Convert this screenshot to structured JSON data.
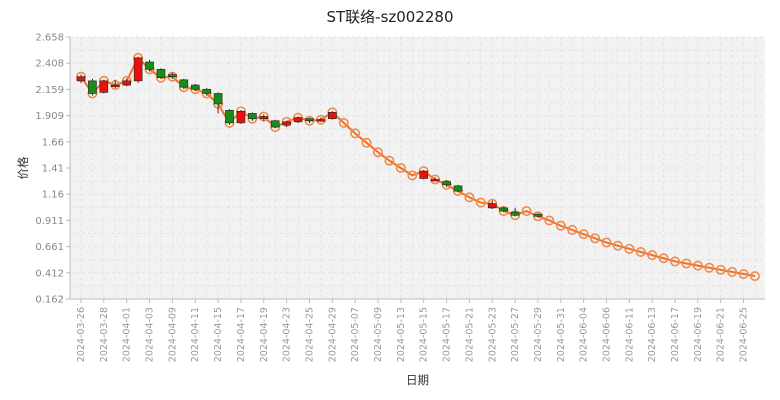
{
  "chart_data": {
    "type": "candlestick",
    "title": "ST联络-sz002280",
    "xlabel": "日期",
    "ylabel": "价格",
    "ylim": [
      0.162,
      2.658
    ],
    "y_ticks": [
      "0.162",
      "0.412",
      "0.661",
      "0.911",
      "1.16",
      "1.41",
      "1.66",
      "1.909",
      "2.159",
      "2.408",
      "2.658"
    ],
    "x_tick_labels": [
      "2024-03-26",
      "2024-03-28",
      "2024-04-01",
      "2024-04-03",
      "2024-04-09",
      "2024-04-11",
      "2024-04-15",
      "2024-04-17",
      "2024-04-19",
      "2024-04-23",
      "2024-04-25",
      "2024-04-29",
      "2024-05-07",
      "2024-05-09",
      "2024-05-13",
      "2024-05-15",
      "2024-05-17",
      "2024-05-21",
      "2024-05-23",
      "2024-05-27",
      "2024-05-29",
      "2024-05-31",
      "2024-06-04",
      "2024-06-06",
      "2024-06-11",
      "2024-06-13",
      "2024-06-17",
      "2024-06-19",
      "2024-06-21",
      "2024-06-25"
    ],
    "grid": true,
    "colors": {
      "up": "#e8110e",
      "down": "#1a8c1a",
      "close_line": "#ef7029",
      "marker": "#f08a4b",
      "grid": "#e3e3e3",
      "plot_bg": "#f2f2f2"
    },
    "candles": [
      {
        "o": 2.24,
        "c": 2.28,
        "h": 2.3,
        "l": 2.22
      },
      {
        "o": 2.24,
        "c": 2.12,
        "h": 2.26,
        "l": 2.1
      },
      {
        "o": 2.13,
        "c": 2.24,
        "h": 2.25,
        "l": 2.12
      },
      {
        "o": 2.2,
        "c": 2.2,
        "h": 2.25,
        "l": 2.17
      },
      {
        "o": 2.2,
        "c": 2.24,
        "h": 2.26,
        "l": 2.19
      },
      {
        "o": 2.24,
        "c": 2.46,
        "h": 2.46,
        "l": 2.22
      },
      {
        "o": 2.42,
        "c": 2.35,
        "h": 2.44,
        "l": 2.33
      },
      {
        "o": 2.35,
        "c": 2.27,
        "h": 2.36,
        "l": 2.26
      },
      {
        "o": 2.3,
        "c": 2.28,
        "h": 2.32,
        "l": 2.26
      },
      {
        "o": 2.25,
        "c": 2.18,
        "h": 2.26,
        "l": 2.16
      },
      {
        "o": 2.2,
        "c": 2.16,
        "h": 2.21,
        "l": 2.14
      },
      {
        "o": 2.16,
        "c": 2.12,
        "h": 2.17,
        "l": 2.1
      },
      {
        "o": 2.12,
        "c": 2.02,
        "h": 2.13,
        "l": 1.93
      },
      {
        "o": 1.96,
        "c": 1.84,
        "h": 1.97,
        "l": 1.82
      },
      {
        "o": 1.84,
        "c": 1.95,
        "h": 1.96,
        "l": 1.83
      },
      {
        "o": 1.93,
        "c": 1.88,
        "h": 1.94,
        "l": 1.86
      },
      {
        "o": 1.88,
        "c": 1.9,
        "h": 1.92,
        "l": 1.86
      },
      {
        "o": 1.86,
        "c": 1.8,
        "h": 1.87,
        "l": 1.79
      },
      {
        "o": 1.82,
        "c": 1.85,
        "h": 1.86,
        "l": 1.8
      },
      {
        "o": 1.85,
        "c": 1.89,
        "h": 1.9,
        "l": 1.84
      },
      {
        "o": 1.88,
        "c": 1.86,
        "h": 1.89,
        "l": 1.84
      },
      {
        "o": 1.87,
        "c": 1.87,
        "h": 1.89,
        "l": 1.85
      },
      {
        "o": 1.88,
        "c": 1.94,
        "h": 1.95,
        "l": 1.87
      },
      {
        "o": 1.84,
        "c": 1.84,
        "h": 1.84,
        "l": 1.84
      },
      {
        "o": 1.74,
        "c": 1.74,
        "h": 1.74,
        "l": 1.74
      },
      {
        "o": 1.65,
        "c": 1.65,
        "h": 1.65,
        "l": 1.65
      },
      {
        "o": 1.56,
        "c": 1.56,
        "h": 1.56,
        "l": 1.56
      },
      {
        "o": 1.48,
        "c": 1.48,
        "h": 1.48,
        "l": 1.48
      },
      {
        "o": 1.41,
        "c": 1.41,
        "h": 1.41,
        "l": 1.41
      },
      {
        "o": 1.34,
        "c": 1.34,
        "h": 1.34,
        "l": 1.34
      },
      {
        "o": 1.31,
        "c": 1.38,
        "h": 1.39,
        "l": 1.3
      },
      {
        "o": 1.3,
        "c": 1.3,
        "h": 1.32,
        "l": 1.29
      },
      {
        "o": 1.28,
        "c": 1.25,
        "h": 1.29,
        "l": 1.23
      },
      {
        "o": 1.24,
        "c": 1.19,
        "h": 1.25,
        "l": 1.18
      },
      {
        "o": 1.13,
        "c": 1.13,
        "h": 1.13,
        "l": 1.13
      },
      {
        "o": 1.08,
        "c": 1.08,
        "h": 1.08,
        "l": 1.08
      },
      {
        "o": 1.03,
        "c": 1.07,
        "h": 1.1,
        "l": 1.02
      },
      {
        "o": 1.03,
        "c": 1.0,
        "h": 1.04,
        "l": 0.99
      },
      {
        "o": 0.99,
        "c": 0.96,
        "h": 1.03,
        "l": 0.95
      },
      {
        "o": 1.0,
        "c": 1.0,
        "h": 1.0,
        "l": 1.0
      },
      {
        "o": 0.97,
        "c": 0.95,
        "h": 0.98,
        "l": 0.94
      },
      {
        "o": 0.91,
        "c": 0.91,
        "h": 0.91,
        "l": 0.91
      },
      {
        "o": 0.86,
        "c": 0.86,
        "h": 0.86,
        "l": 0.86
      },
      {
        "o": 0.82,
        "c": 0.82,
        "h": 0.82,
        "l": 0.82
      },
      {
        "o": 0.78,
        "c": 0.78,
        "h": 0.78,
        "l": 0.78
      },
      {
        "o": 0.74,
        "c": 0.74,
        "h": 0.74,
        "l": 0.74
      },
      {
        "o": 0.7,
        "c": 0.7,
        "h": 0.7,
        "l": 0.7
      },
      {
        "o": 0.67,
        "c": 0.67,
        "h": 0.67,
        "l": 0.67
      },
      {
        "o": 0.64,
        "c": 0.64,
        "h": 0.64,
        "l": 0.64
      },
      {
        "o": 0.61,
        "c": 0.61,
        "h": 0.61,
        "l": 0.61
      },
      {
        "o": 0.58,
        "c": 0.58,
        "h": 0.58,
        "l": 0.58
      },
      {
        "o": 0.55,
        "c": 0.55,
        "h": 0.55,
        "l": 0.55
      },
      {
        "o": 0.52,
        "c": 0.52,
        "h": 0.52,
        "l": 0.52
      },
      {
        "o": 0.5,
        "c": 0.5,
        "h": 0.5,
        "l": 0.5
      },
      {
        "o": 0.48,
        "c": 0.48,
        "h": 0.48,
        "l": 0.48
      },
      {
        "o": 0.46,
        "c": 0.46,
        "h": 0.46,
        "l": 0.46
      },
      {
        "o": 0.44,
        "c": 0.44,
        "h": 0.44,
        "l": 0.44
      },
      {
        "o": 0.42,
        "c": 0.42,
        "h": 0.42,
        "l": 0.42
      },
      {
        "o": 0.4,
        "c": 0.4,
        "h": 0.4,
        "l": 0.4
      },
      {
        "o": 0.38,
        "c": 0.38,
        "h": 0.38,
        "l": 0.38
      }
    ]
  }
}
